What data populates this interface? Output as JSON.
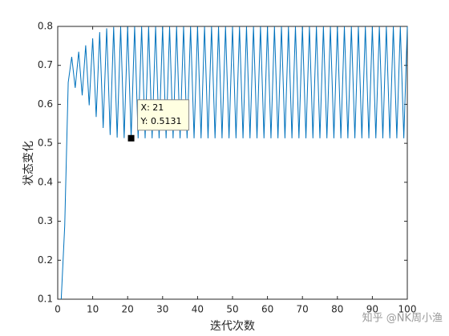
{
  "chart_data": {
    "type": "line",
    "xlabel": "迭代次数",
    "ylabel": "状态变化",
    "x": [
      1,
      2,
      3,
      4,
      5,
      6,
      7,
      8,
      9,
      10,
      11,
      12,
      13,
      14,
      15,
      16,
      17,
      18,
      19,
      20,
      21,
      22,
      23,
      24,
      25,
      26,
      27,
      28,
      29,
      30,
      31,
      32,
      33,
      34,
      35,
      36,
      37,
      38,
      39,
      40,
      41,
      42,
      43,
      44,
      45,
      46,
      47,
      48,
      49,
      50,
      51,
      52,
      53,
      54,
      55,
      56,
      57,
      58,
      59,
      60,
      61,
      62,
      63,
      64,
      65,
      66,
      67,
      68,
      69,
      70,
      71,
      72,
      73,
      74,
      75,
      76,
      77,
      78,
      79,
      80,
      81,
      82,
      83,
      84,
      85,
      86,
      87,
      88,
      89,
      90,
      91,
      92,
      93,
      94,
      95,
      96,
      97,
      98,
      99,
      100
    ],
    "series": [
      {
        "color": "#0072bd",
        "values": [
          0.1,
          0.288,
          0.6562,
          0.7219,
          0.6424,
          0.7351,
          0.6231,
          0.7515,
          0.5976,
          0.7695,
          0.5675,
          0.7854,
          0.5393,
          0.7951,
          0.5214,
          0.7985,
          0.5148,
          0.7993,
          0.5133,
          0.7995,
          0.5131,
          0.7995,
          0.513,
          0.7995,
          0.513,
          0.7995,
          0.513,
          0.7995,
          0.513,
          0.7995,
          0.513,
          0.7995,
          0.513,
          0.7995,
          0.513,
          0.7995,
          0.513,
          0.7995,
          0.513,
          0.7995,
          0.513,
          0.7995,
          0.513,
          0.7995,
          0.513,
          0.7995,
          0.513,
          0.7995,
          0.513,
          0.7995,
          0.513,
          0.7995,
          0.513,
          0.7995,
          0.513,
          0.7995,
          0.513,
          0.7995,
          0.513,
          0.7995,
          0.513,
          0.7995,
          0.513,
          0.7995,
          0.513,
          0.7995,
          0.513,
          0.7995,
          0.513,
          0.7995,
          0.513,
          0.7995,
          0.513,
          0.7995,
          0.513,
          0.7995,
          0.513,
          0.7995,
          0.513,
          0.7995,
          0.513,
          0.7995,
          0.513,
          0.7995,
          0.513,
          0.7995,
          0.513,
          0.7995,
          0.513,
          0.7995,
          0.513,
          0.7995,
          0.513,
          0.7995,
          0.513,
          0.7995,
          0.513,
          0.7995,
          0.513,
          0.7995
        ]
      }
    ],
    "xlim": [
      0,
      100
    ],
    "xticks": [
      0,
      10,
      20,
      30,
      40,
      50,
      60,
      70,
      80,
      90,
      100
    ],
    "ylim": [
      0.1,
      0.8
    ],
    "yticks": [
      0.1,
      0.2,
      0.3,
      0.4,
      0.5,
      0.6,
      0.7,
      0.8
    ],
    "datatip": {
      "x": 21,
      "y": 0.5131,
      "text_x": "X: 21",
      "text_y": "Y: 0.5131"
    },
    "watermark": "知乎 @NK周小渔"
  }
}
